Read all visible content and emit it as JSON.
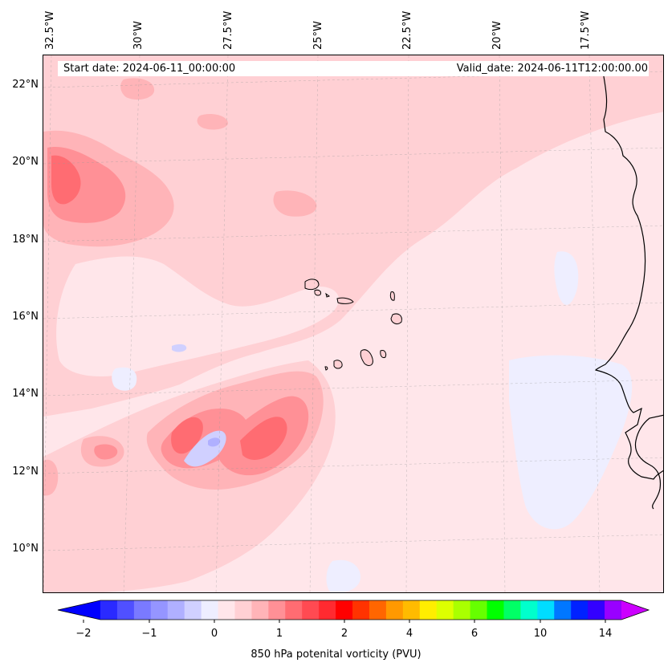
{
  "header": {
    "start_date": "Start date: 2024-06-11_00:00:00",
    "valid_date": "Valid_date: 2024-06-11T12:00:00.00"
  },
  "axes": {
    "lon_labels": [
      "32.5°W",
      "30°W",
      "27.5°W",
      "25°W",
      "22.5°W",
      "20°W",
      "17.5°W"
    ],
    "lat_labels": [
      "22°N",
      "20°N",
      "18°N",
      "16°N",
      "14°N",
      "12°N",
      "10°N"
    ]
  },
  "colorbar": {
    "label": "850 hPa potenital vorticity (PVU)",
    "ticks": [
      "−2",
      "−1",
      "0",
      "1",
      "2",
      "4",
      "6",
      "10",
      "14"
    ],
    "colors": [
      "#0000ff",
      "#2a2aff",
      "#5050ff",
      "#7a7aff",
      "#9595ff",
      "#b0b0ff",
      "#d0d0ff",
      "#eeeeff",
      "#ffe6ea",
      "#ffd0d4",
      "#ffb4b8",
      "#ff9096",
      "#ff6c72",
      "#ff4a52",
      "#ff2a30",
      "#ff0000",
      "#ff3300",
      "#ff6600",
      "#ff9900",
      "#ffbb00",
      "#ffee00",
      "#ddff00",
      "#aaff00",
      "#66ff00",
      "#00ff00",
      "#00ff66",
      "#00ffcc",
      "#00ddff",
      "#0077ff",
      "#0022ff",
      "#3300ff",
      "#9900ff",
      "#cc00ff"
    ]
  },
  "map_colors": {
    "background": "#ffe6ea",
    "light_pink": "#ffd0d4",
    "pink": "#ffb4b8",
    "mid_red": "#ff9096",
    "red": "#ff6c72",
    "deep_red": "#ff4a52",
    "pale_blue": "#eeeeff",
    "light_blue": "#d0d0ff",
    "blue": "#b0b0ff",
    "coast": "#000000"
  }
}
